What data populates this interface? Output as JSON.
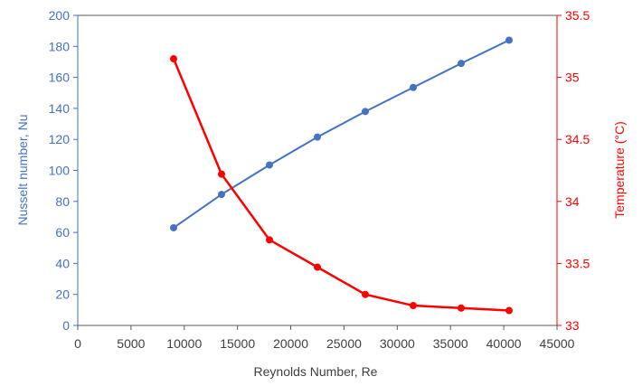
{
  "chart_data": {
    "type": "line",
    "title": "",
    "xlabel": "Reynolds Number,  Re",
    "ylabel_left": "Nusselt number,  Nu",
    "ylabel_right": "Temperature (°C)",
    "xlim": [
      0,
      45000
    ],
    "ylim_left": [
      0,
      200
    ],
    "ylim_right": [
      33,
      35.5
    ],
    "x_ticks": [
      "0",
      "5000",
      "10000",
      "15000",
      "20000",
      "25000",
      "30000",
      "35000",
      "40000",
      "45000"
    ],
    "y_left_ticks": [
      "0",
      "20",
      "40",
      "60",
      "80",
      "100",
      "120",
      "140",
      "160",
      "180",
      "200"
    ],
    "y_right_ticks": [
      "33",
      "33.5",
      "34",
      "34.5",
      "35",
      "35.5"
    ],
    "grid": false,
    "legend": "none",
    "series": [
      {
        "axis": "left",
        "color": "#4472C4",
        "x": [
          9000,
          13500,
          18000,
          22500,
          27000,
          31500,
          36000,
          40500
        ],
        "values": [
          63,
          84.5,
          103.5,
          121.5,
          138,
          153.5,
          169,
          184
        ]
      },
      {
        "axis": "right",
        "color": "#FF0000",
        "x": [
          9000,
          13500,
          18000,
          22500,
          27000,
          31500,
          36000,
          40500
        ],
        "values": [
          35.15,
          34.22,
          33.69,
          33.47,
          33.25,
          33.16,
          33.14,
          33.12
        ]
      }
    ]
  }
}
